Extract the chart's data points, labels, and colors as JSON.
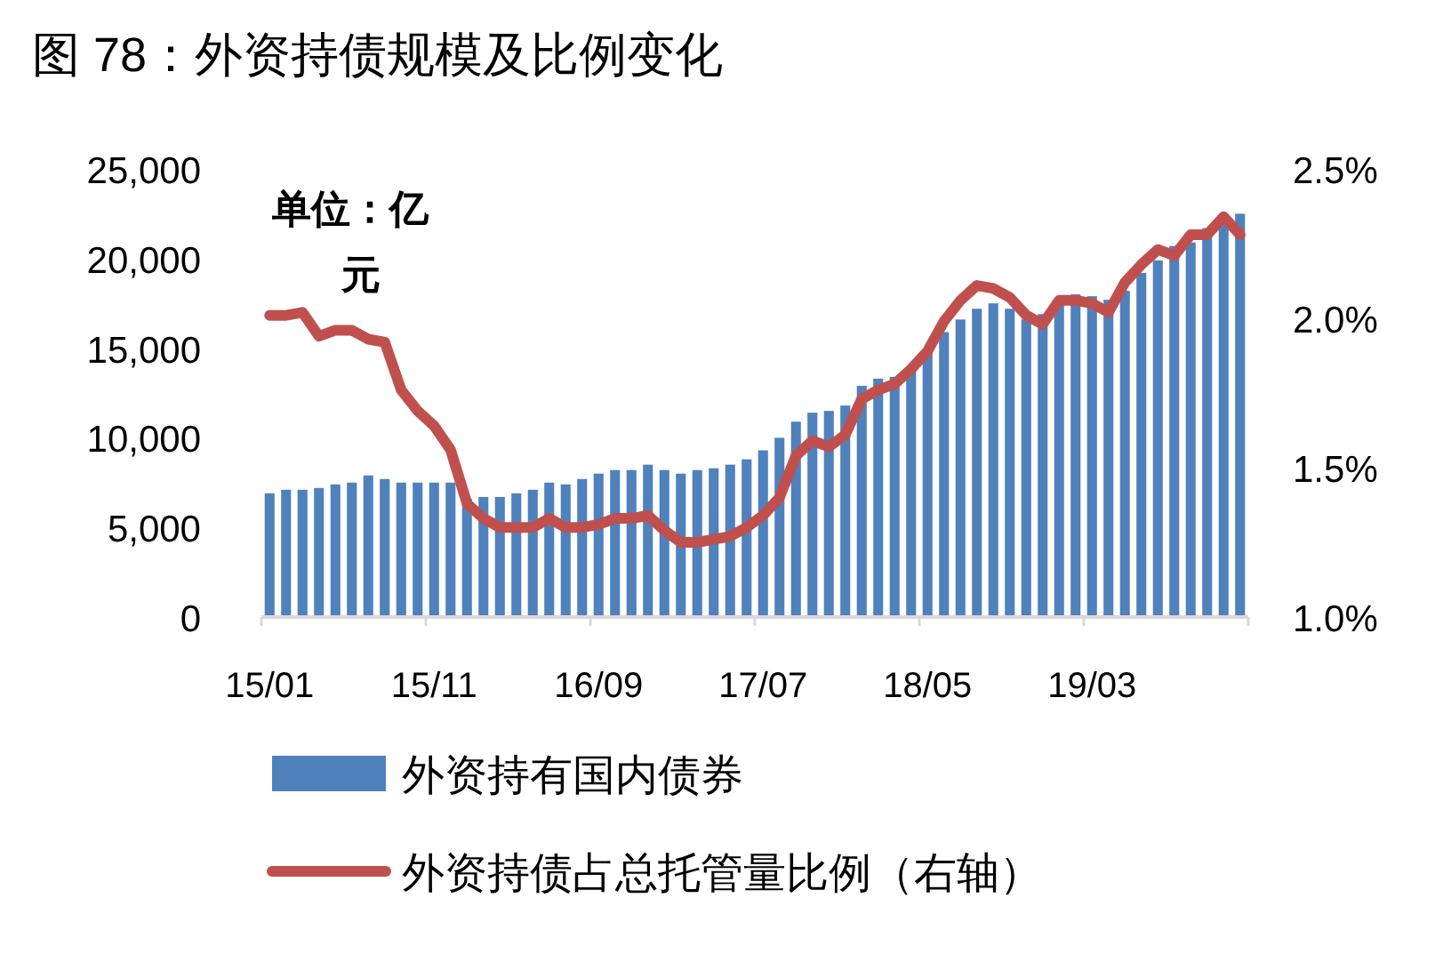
{
  "chart_data": {
    "type": "bar",
    "title": "图 78：外资持债规模及比例变化",
    "categories": [
      "15/01",
      null,
      null,
      null,
      null,
      null,
      null,
      null,
      null,
      null,
      "15/11",
      null,
      null,
      null,
      null,
      null,
      null,
      null,
      null,
      null,
      "16/09",
      null,
      null,
      null,
      null,
      null,
      null,
      null,
      null,
      null,
      "17/07",
      null,
      null,
      null,
      null,
      null,
      null,
      null,
      null,
      null,
      "18/05",
      null,
      null,
      null,
      null,
      null,
      null,
      null,
      null,
      null,
      "19/03",
      null,
      null,
      null,
      null,
      null,
      null,
      null,
      null,
      null
    ],
    "series": [
      {
        "name": "外资持有国内债券",
        "color": "#4f81bd",
        "values": [
          6900,
          7100,
          7100,
          7200,
          7400,
          7500,
          7900,
          7700,
          7500,
          7500,
          7500,
          7500,
          6600,
          6700,
          6700,
          6900,
          7100,
          7500,
          7400,
          7700,
          8000,
          8200,
          8200,
          8500,
          8200,
          8000,
          8200,
          8300,
          8500,
          8800,
          9300,
          10000,
          10900,
          11400,
          11500,
          11800,
          12900,
          13300,
          13400,
          14000,
          14800,
          15900,
          16600,
          17200,
          17500,
          17200,
          16600,
          16900,
          17800,
          18000,
          17900,
          17700,
          18200,
          19200,
          19900,
          20700,
          20900,
          21700,
          22300,
          22500
        ]
      },
      {
        "name": "外资持债占总托管量比例（右轴）",
        "type": "line",
        "axis": "y2",
        "color": "#c0504d",
        "values": [
          2.01,
          2.01,
          2.02,
          1.94,
          1.96,
          1.96,
          1.93,
          1.92,
          1.76,
          1.69,
          1.64,
          1.56,
          1.38,
          1.33,
          1.3,
          1.3,
          1.3,
          1.33,
          1.3,
          1.3,
          1.31,
          1.33,
          1.33,
          1.34,
          1.29,
          1.25,
          1.25,
          1.26,
          1.27,
          1.3,
          1.34,
          1.4,
          1.54,
          1.59,
          1.57,
          1.61,
          1.73,
          1.76,
          1.78,
          1.83,
          1.89,
          1.99,
          2.06,
          2.11,
          2.1,
          2.07,
          2.01,
          1.98,
          2.06,
          2.06,
          2.05,
          2.02,
          2.12,
          2.18,
          2.23,
          2.21,
          2.28,
          2.28,
          2.34,
          2.28
        ]
      }
    ],
    "ylim": [
      0,
      25000
    ],
    "yticks": [
      {
        "value": 0,
        "label": "0"
      },
      {
        "value": 5000,
        "label": "5,000"
      },
      {
        "value": 10000,
        "label": "10,000"
      },
      {
        "value": 15000,
        "label": "15,000"
      },
      {
        "value": 20000,
        "label": "20,000"
      },
      {
        "value": 25000,
        "label": "25,000"
      }
    ],
    "y2lim": [
      1.0,
      2.5
    ],
    "y2ticks": [
      {
        "value": 1.0,
        "label": "1.0%"
      },
      {
        "value": 1.5,
        "label": "1.5%"
      },
      {
        "value": 2.0,
        "label": "2.0%"
      },
      {
        "value": 2.5,
        "label": "2.5%"
      }
    ],
    "annotations": [
      "单位：亿元"
    ],
    "legend": "bottom"
  }
}
